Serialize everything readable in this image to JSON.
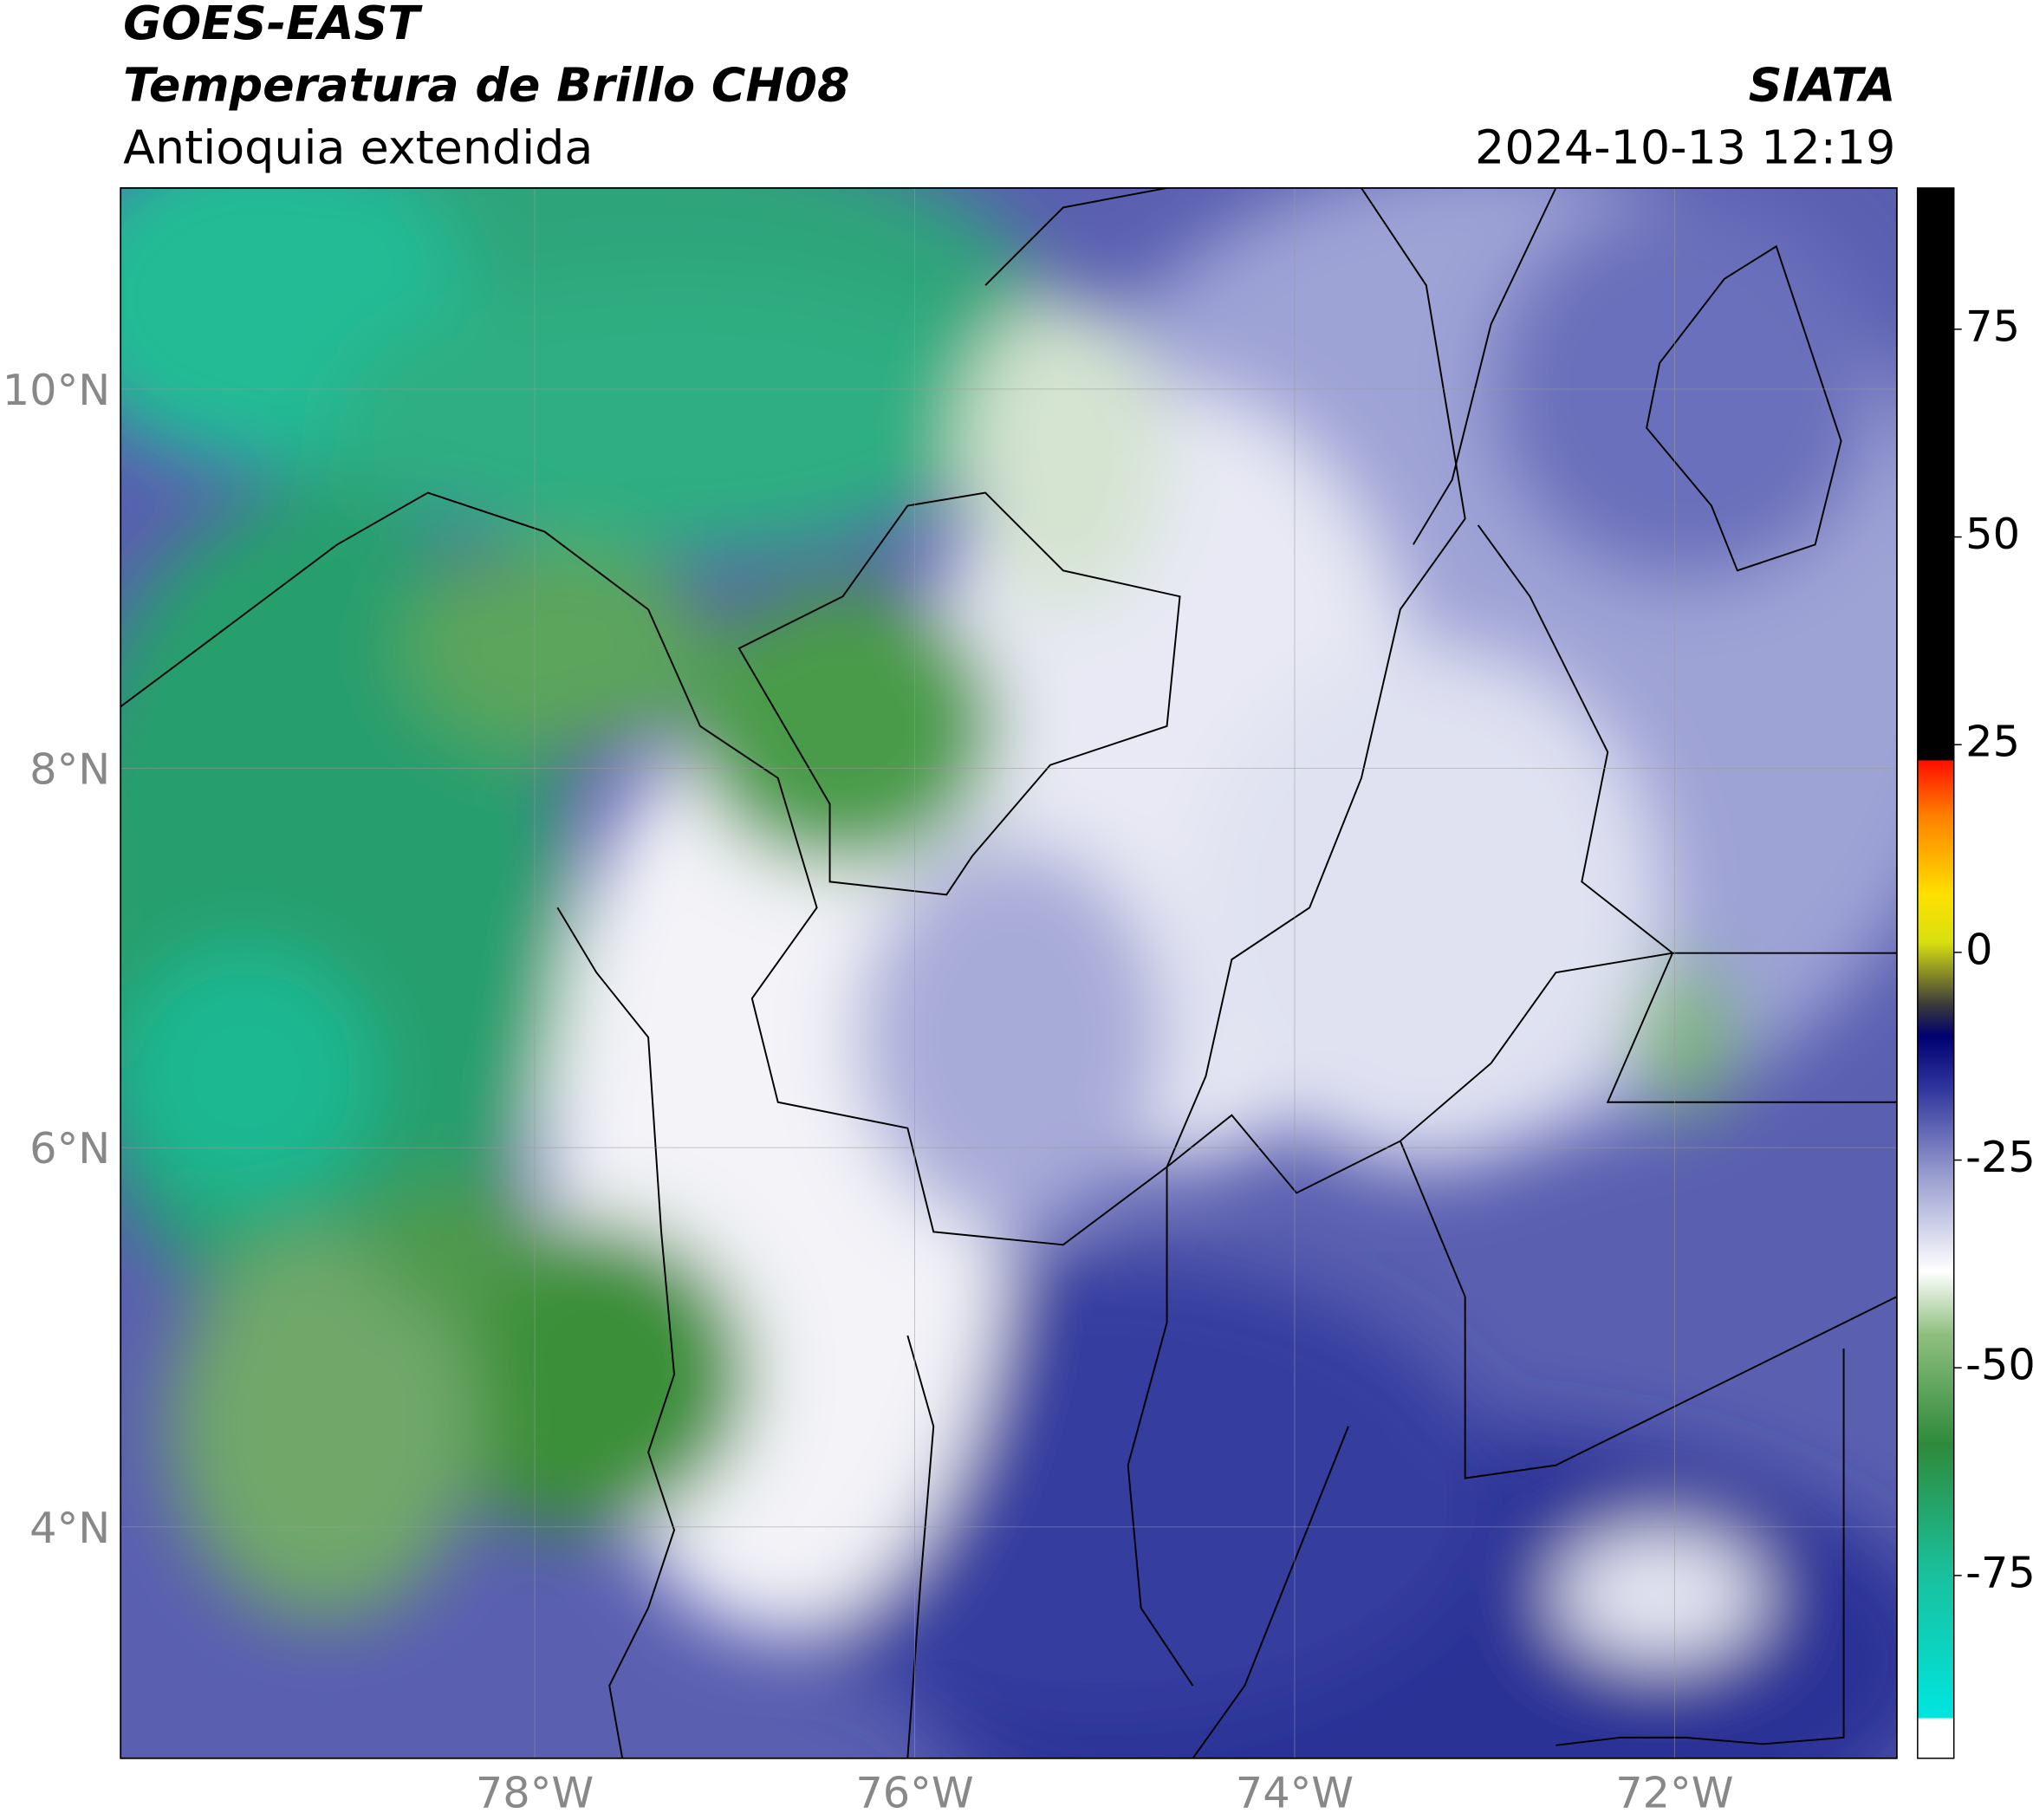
{
  "header": {
    "satellite": "GOES-EAST",
    "product": "Temperatura de Brillo CH08",
    "region": "Antioquia extendida",
    "source": "SIATA",
    "datetime": "2024-10-13 12:19"
  },
  "map": {
    "lon_range": [
      -80.18,
      -70.83
    ],
    "lat_range": [
      2.78,
      11.06
    ],
    "lat_ticks": [
      {
        "value": 10,
        "label": "10°N"
      },
      {
        "value": 8,
        "label": "8°N"
      },
      {
        "value": 6,
        "label": "6°N"
      },
      {
        "value": 4,
        "label": "4°N"
      }
    ],
    "lon_ticks": [
      {
        "value": -78,
        "label": "78°W"
      },
      {
        "value": -76,
        "label": "76°W"
      },
      {
        "value": -74,
        "label": "74°W"
      },
      {
        "value": -72,
        "label": "72°W"
      }
    ]
  },
  "colorbar": {
    "range": [
      -97,
      92
    ],
    "ticks": [
      75,
      50,
      25,
      0,
      -25,
      -50,
      -75
    ]
  }
}
